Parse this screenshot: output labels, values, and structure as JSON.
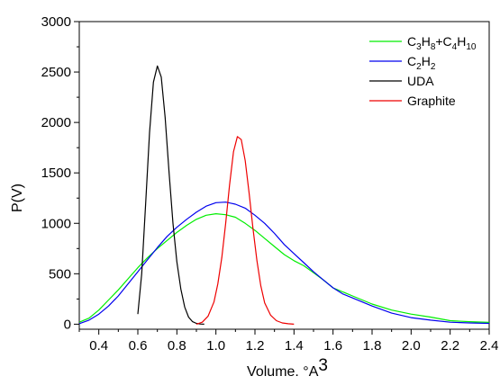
{
  "chart_data": {
    "type": "line",
    "title": "",
    "xlabel": "Volume. °A",
    "xlabel_superscript": "3",
    "ylabel": "P(V)",
    "xlim": [
      0.3,
      2.4
    ],
    "ylim": [
      -50,
      3000
    ],
    "x_ticks": [
      "0.4",
      "0.6",
      "0.8",
      "1.0",
      "1.2",
      "1.4",
      "1.6",
      "1.8",
      "2.0",
      "2.2",
      "2.4"
    ],
    "y_ticks": [
      "0",
      "500",
      "1000",
      "1500",
      "2000",
      "2500",
      "3000"
    ],
    "grid": false,
    "legend_position": "top-right",
    "series": [
      {
        "name": "C3H8+C4H10",
        "legend_parts": [
          [
            "C",
            ""
          ],
          [
            "3",
            "sub"
          ],
          [
            "H",
            ""
          ],
          [
            "8",
            "sub"
          ],
          [
            "+C",
            ""
          ],
          [
            "4",
            "sub"
          ],
          [
            "H",
            ""
          ],
          [
            "10",
            "sub"
          ]
        ],
        "color": "#00ee00",
        "x": [
          0.3,
          0.35,
          0.4,
          0.45,
          0.5,
          0.55,
          0.6,
          0.65,
          0.7,
          0.75,
          0.8,
          0.85,
          0.9,
          0.95,
          1.0,
          1.05,
          1.1,
          1.15,
          1.2,
          1.25,
          1.3,
          1.35,
          1.4,
          1.45,
          1.5,
          1.55,
          1.6,
          1.65,
          1.7,
          1.8,
          1.9,
          2.0,
          2.1,
          2.2,
          2.3,
          2.4
        ],
        "values": [
          20,
          60,
          140,
          240,
          340,
          450,
          560,
          660,
          750,
          830,
          910,
          980,
          1040,
          1080,
          1095,
          1085,
          1060,
          1000,
          930,
          850,
          770,
          690,
          630,
          580,
          510,
          440,
          360,
          320,
          280,
          200,
          140,
          100,
          70,
          35,
          25,
          18
        ]
      },
      {
        "name": "C2H2",
        "legend_parts": [
          [
            "C",
            ""
          ],
          [
            "2",
            "sub"
          ],
          [
            "H",
            ""
          ],
          [
            "2",
            "sub"
          ]
        ],
        "color": "#0000ee",
        "x": [
          0.3,
          0.35,
          0.4,
          0.45,
          0.5,
          0.55,
          0.6,
          0.65,
          0.7,
          0.75,
          0.8,
          0.85,
          0.9,
          0.95,
          1.0,
          1.05,
          1.1,
          1.15,
          1.2,
          1.25,
          1.3,
          1.35,
          1.4,
          1.45,
          1.5,
          1.55,
          1.6,
          1.65,
          1.7,
          1.8,
          1.9,
          2.0,
          2.1,
          2.2,
          2.3,
          2.4
        ],
        "values": [
          5,
          40,
          100,
          180,
          280,
          400,
          520,
          640,
          760,
          870,
          960,
          1040,
          1110,
          1170,
          1205,
          1210,
          1190,
          1150,
          1080,
          1000,
          900,
          790,
          700,
          610,
          520,
          440,
          360,
          300,
          260,
          180,
          110,
          65,
          40,
          20,
          12,
          8
        ]
      },
      {
        "name": "UDA",
        "legend_parts": [
          [
            "UDA",
            ""
          ]
        ],
        "color": "#000000",
        "x": [
          0.6,
          0.62,
          0.64,
          0.66,
          0.68,
          0.7,
          0.72,
          0.74,
          0.76,
          0.78,
          0.8,
          0.82,
          0.84,
          0.86,
          0.88,
          0.9,
          0.92,
          0.94
        ],
        "values": [
          100,
          500,
          1200,
          1900,
          2400,
          2560,
          2450,
          2050,
          1500,
          1000,
          620,
          350,
          170,
          70,
          25,
          8,
          2,
          0
        ]
      },
      {
        "name": "Graphite",
        "legend_parts": [
          [
            "Graphite",
            ""
          ]
        ],
        "color": "#ee0000",
        "x": [
          0.9,
          0.93,
          0.96,
          0.99,
          1.01,
          1.03,
          1.05,
          1.07,
          1.09,
          1.11,
          1.13,
          1.15,
          1.17,
          1.19,
          1.21,
          1.23,
          1.25,
          1.28,
          1.31,
          1.34,
          1.37,
          1.4
        ],
        "values": [
          0,
          20,
          80,
          220,
          400,
          660,
          1000,
          1380,
          1710,
          1860,
          1830,
          1620,
          1300,
          950,
          630,
          380,
          210,
          90,
          35,
          12,
          4,
          0
        ]
      }
    ]
  }
}
